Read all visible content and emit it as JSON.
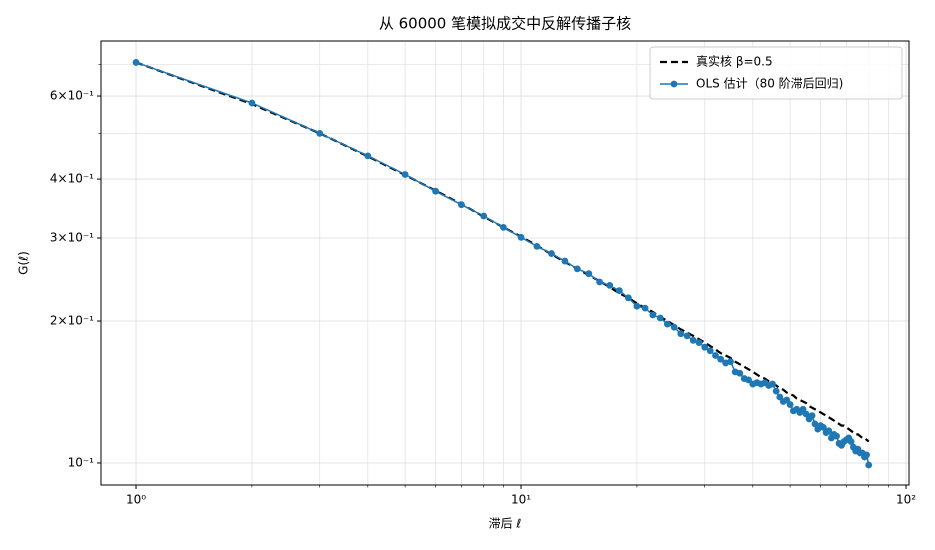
{
  "chart_data": {
    "type": "line",
    "title": "从 60000 笔模拟成交中反解传播子核",
    "x_label": "滞后 ℓ",
    "y_label": "G(ℓ)",
    "xscale": "log",
    "yscale": "log",
    "grid": true,
    "legend_loc": "upper right",
    "xlim": [
      0.811,
      101.8
    ],
    "ylim": [
      0.0898,
      0.785
    ],
    "xticks": [
      {
        "value": 1,
        "label": "10⁰"
      },
      {
        "value": 10,
        "label": "10¹"
      },
      {
        "value": 100,
        "label": "10²"
      }
    ],
    "xminor_ticks": [
      2,
      3,
      4,
      5,
      6,
      7,
      8,
      9,
      20,
      30,
      40,
      50,
      60,
      70,
      80,
      90
    ],
    "yticks": [
      {
        "value": 0.1,
        "label": "10⁻¹"
      },
      {
        "value": 0.2,
        "label": "2×10⁻¹"
      },
      {
        "value": 0.3,
        "label": "3×10⁻¹"
      },
      {
        "value": 0.4,
        "label": "4×10⁻¹"
      },
      {
        "value": 0.6,
        "label": "6×10⁻¹"
      }
    ],
    "yminor_ticks": [
      0.5,
      0.7
    ],
    "x": [
      1,
      2,
      3,
      4,
      5,
      6,
      7,
      8,
      9,
      10,
      11,
      12,
      13,
      14,
      15,
      16,
      17,
      18,
      19,
      20,
      21,
      22,
      23,
      24,
      25,
      26,
      27,
      28,
      29,
      30,
      31,
      32,
      33,
      34,
      35,
      36,
      37,
      38,
      39,
      40,
      41,
      42,
      43,
      44,
      45,
      46,
      47,
      48,
      49,
      50,
      51,
      52,
      53,
      54,
      55,
      56,
      57,
      58,
      59,
      60,
      61,
      62,
      63,
      64,
      65,
      66,
      67,
      68,
      69,
      70,
      71,
      72,
      73,
      74,
      75,
      76,
      77,
      78,
      79,
      80
    ],
    "series": [
      {
        "name": "真实核 β=0.5",
        "color": "#000000",
        "dashed": true,
        "marker": false,
        "values": [
          0.707,
          0.577,
          0.5,
          0.447,
          0.408,
          0.378,
          0.354,
          0.333,
          0.316,
          0.302,
          0.289,
          0.277,
          0.267,
          0.258,
          0.25,
          0.243,
          0.236,
          0.229,
          0.224,
          0.218,
          0.213,
          0.209,
          0.204,
          0.2,
          0.196,
          0.192,
          0.189,
          0.186,
          0.183,
          0.18,
          0.177,
          0.174,
          0.171,
          0.169,
          0.167,
          0.164,
          0.162,
          0.16,
          0.158,
          0.156,
          0.154,
          0.152,
          0.151,
          0.149,
          0.147,
          0.146,
          0.144,
          0.143,
          0.141,
          0.14,
          0.139,
          0.137,
          0.136,
          0.135,
          0.134,
          0.132,
          0.131,
          0.13,
          0.129,
          0.128,
          0.127,
          0.126,
          0.125,
          0.124,
          0.123,
          0.122,
          0.121,
          0.12,
          0.12,
          0.119,
          0.118,
          0.117,
          0.116,
          0.115,
          0.115,
          0.114,
          0.113,
          0.113,
          0.112,
          0.111
        ]
      },
      {
        "name": "OLS 估计（80 阶滞后回归)",
        "color": "#1f77b4",
        "dashed": false,
        "marker": true,
        "values": [
          0.707,
          0.58,
          0.5,
          0.448,
          0.409,
          0.377,
          0.353,
          0.334,
          0.316,
          0.301,
          0.288,
          0.278,
          0.268,
          0.258,
          0.252,
          0.242,
          0.238,
          0.232,
          0.224,
          0.215,
          0.213,
          0.206,
          0.203,
          0.197,
          0.194,
          0.188,
          0.186,
          0.182,
          0.18,
          0.176,
          0.173,
          0.169,
          0.166,
          0.163,
          0.164,
          0.156,
          0.155,
          0.151,
          0.15,
          0.147,
          0.148,
          0.147,
          0.148,
          0.146,
          0.147,
          0.142,
          0.138,
          0.135,
          0.136,
          0.133,
          0.129,
          0.13,
          0.128,
          0.13,
          0.127,
          0.124,
          0.126,
          0.121,
          0.118,
          0.12,
          0.119,
          0.116,
          0.117,
          0.113,
          0.115,
          0.114,
          0.11,
          0.109,
          0.111,
          0.112,
          0.113,
          0.111,
          0.108,
          0.106,
          0.107,
          0.105,
          0.105,
          0.103,
          0.104,
          0.099
        ]
      }
    ]
  }
}
